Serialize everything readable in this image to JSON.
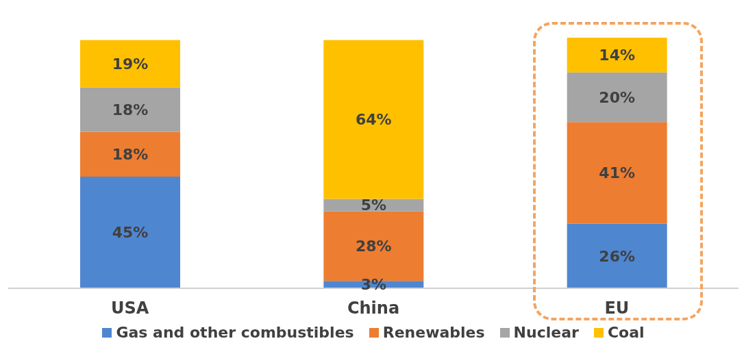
{
  "chart_data": {
    "type": "bar",
    "stacked": true,
    "categories": [
      "USA",
      "China",
      "EU"
    ],
    "series": [
      {
        "name": "Gas and other combustibles",
        "color": "#4f86d0",
        "values": [
          45,
          3,
          26
        ],
        "value_labels": [
          "45%",
          "3%",
          "26%"
        ]
      },
      {
        "name": "Renewables",
        "color": "#ed7d31",
        "values": [
          18,
          28,
          41
        ],
        "value_labels": [
          "18%",
          "28%",
          "41%"
        ]
      },
      {
        "name": "Nuclear",
        "color": "#a5a5a5",
        "values": [
          18,
          5,
          20
        ],
        "value_labels": [
          "18%",
          "5%",
          "20%"
        ]
      },
      {
        "name": "Coal",
        "color": "#ffc000",
        "values": [
          19,
          64,
          14
        ],
        "value_labels": [
          "19%",
          "64%",
          "14%"
        ]
      }
    ],
    "legend": "bottom"
  }
}
